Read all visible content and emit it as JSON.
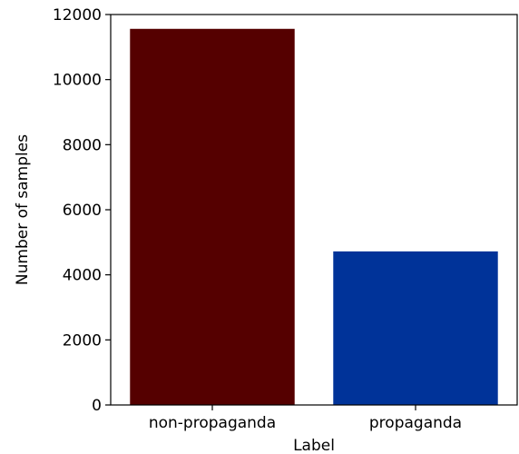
{
  "chart_data": {
    "type": "bar",
    "categories": [
      "non-propaganda",
      "propaganda"
    ],
    "values": [
      11560,
      4720
    ],
    "colors": [
      "#550000",
      "#003399"
    ],
    "xlabel": "Label",
    "ylabel": "Number of samples",
    "ylim": [
      0,
      12000
    ],
    "yticks": [
      "0",
      "2000",
      "4000",
      "6000",
      "8000",
      "10000",
      "12000"
    ],
    "grid": false
  }
}
